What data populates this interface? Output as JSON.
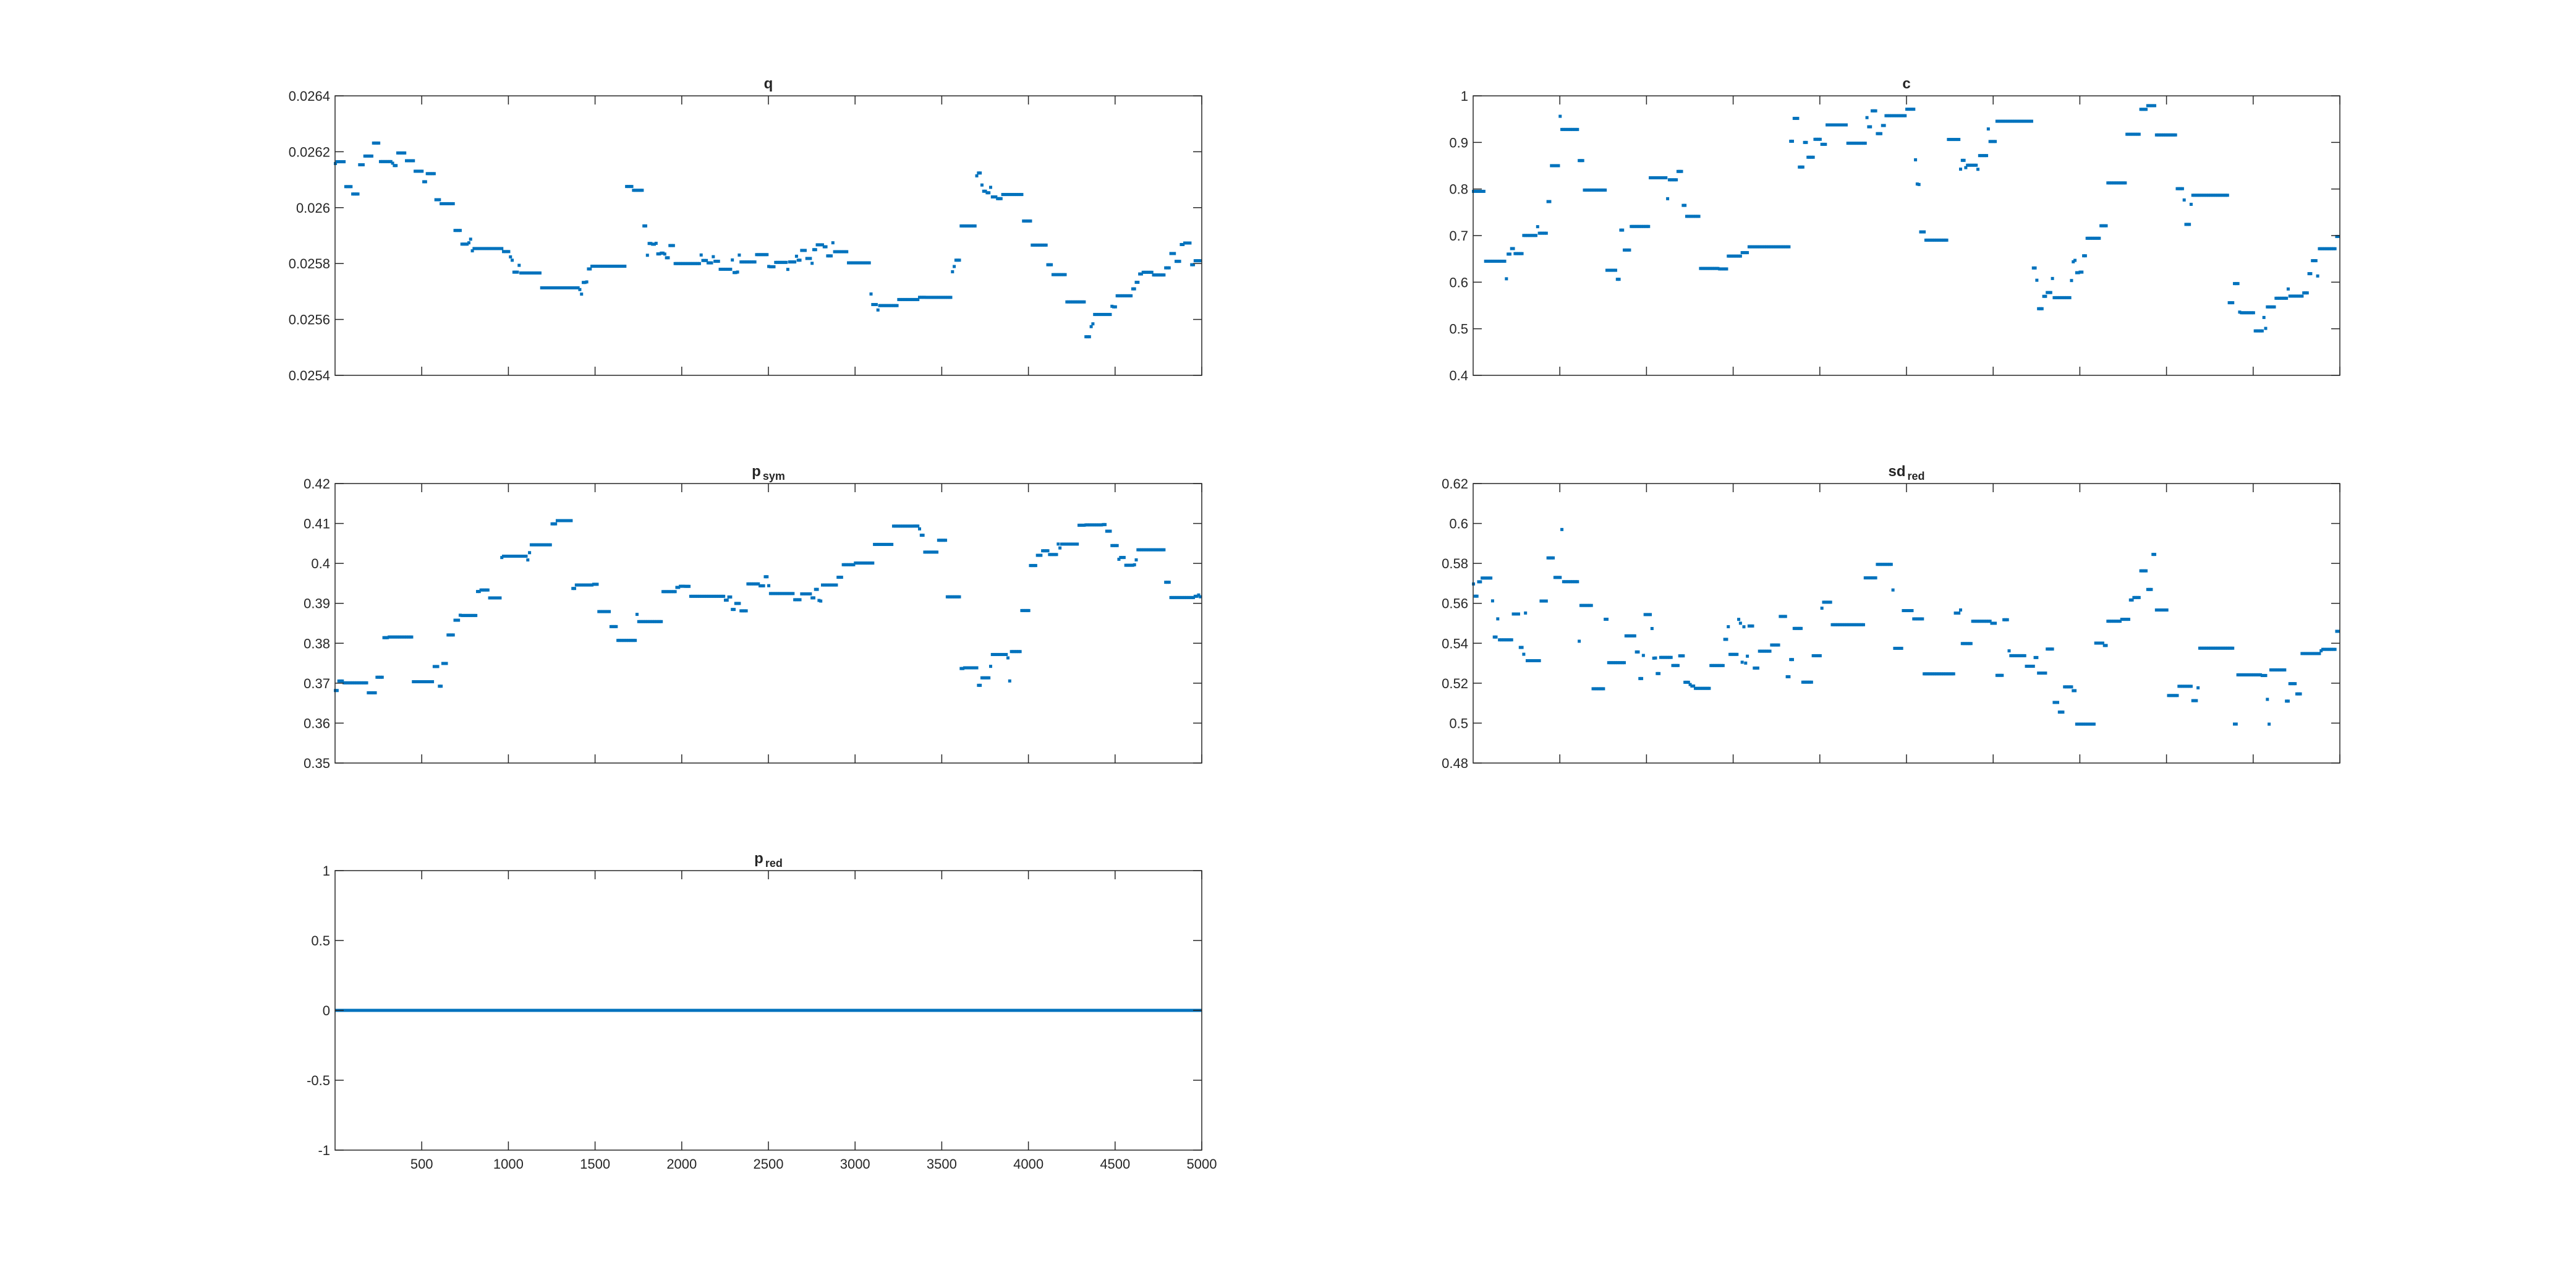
{
  "figure": {
    "background": "#ffffff",
    "axes_color": "#262626",
    "series_color": "#0072bd",
    "grid": false,
    "legend": false
  },
  "chart_data": [
    {
      "id": "q",
      "type": "scatter",
      "title": "q",
      "title_sub": "",
      "xlim": [
        0,
        5000
      ],
      "ylim": [
        0.0254,
        0.0264
      ],
      "yticks": [
        0.0254,
        0.0256,
        0.0258,
        0.026,
        0.0262,
        0.0264
      ],
      "ytick_labels": [
        "0.0254",
        "0.0256",
        "0.0258",
        "0.026",
        "0.0262",
        "0.0264"
      ],
      "xticks": [
        500,
        1000,
        1500,
        2000,
        2500,
        3000,
        3500,
        4000,
        4500,
        5000
      ],
      "xtick_labels": [],
      "series": [
        {
          "marker": "dot",
          "anchors": [
            [
              0,
              0.02616
            ],
            [
              100,
              0.02605
            ],
            [
              200,
              0.02624
            ],
            [
              300,
              0.0261
            ],
            [
              400,
              0.0262
            ],
            [
              500,
              0.02614
            ],
            [
              600,
              0.02602
            ],
            [
              700,
              0.0259
            ],
            [
              800,
              0.02586
            ],
            [
              900,
              0.02584
            ],
            [
              1000,
              0.0258
            ],
            [
              1100,
              0.02574
            ],
            [
              1200,
              0.0257
            ],
            [
              1300,
              0.02564
            ],
            [
              1400,
              0.0257
            ],
            [
              1500,
              0.02578
            ],
            [
              1600,
              0.02584
            ],
            [
              1650,
              0.02598
            ],
            [
              1700,
              0.02612
            ],
            [
              1750,
              0.026
            ],
            [
              1800,
              0.02585
            ],
            [
              1900,
              0.02584
            ],
            [
              2000,
              0.02582
            ],
            [
              2100,
              0.0258
            ],
            [
              2200,
              0.02579
            ],
            [
              2300,
              0.0258
            ],
            [
              2400,
              0.02582
            ],
            [
              2500,
              0.0258
            ],
            [
              2600,
              0.02581
            ],
            [
              2700,
              0.02583
            ],
            [
              2800,
              0.02584
            ],
            [
              2900,
              0.02585
            ],
            [
              2950,
              0.0258
            ],
            [
              3000,
              0.02568
            ],
            [
              3100,
              0.02566
            ],
            [
              3200,
              0.02564
            ],
            [
              3300,
              0.02566
            ],
            [
              3400,
              0.02565
            ],
            [
              3500,
              0.0257
            ],
            [
              3600,
              0.02585
            ],
            [
              3650,
              0.02612
            ],
            [
              3700,
              0.0261
            ],
            [
              3800,
              0.02605
            ],
            [
              3900,
              0.0261
            ],
            [
              4000,
              0.0259
            ],
            [
              4100,
              0.0258
            ],
            [
              4200,
              0.02566
            ],
            [
              4300,
              0.02554
            ],
            [
              4400,
              0.0256
            ],
            [
              4500,
              0.02566
            ],
            [
              4600,
              0.02572
            ],
            [
              4700,
              0.02575
            ],
            [
              4800,
              0.02582
            ],
            [
              4900,
              0.02585
            ],
            [
              5000,
              0.0258
            ]
          ],
          "noise": 3.5e-05
        }
      ]
    },
    {
      "id": "c",
      "type": "scatter",
      "title": "c",
      "title_sub": "",
      "xlim": [
        0,
        5000
      ],
      "ylim": [
        0.4,
        1
      ],
      "yticks": [
        0.4,
        0.5,
        0.6,
        0.7,
        0.8,
        0.9,
        1
      ],
      "ytick_labels": [
        "0.4",
        "0.5",
        "0.6",
        "0.7",
        "0.8",
        "0.9",
        "1"
      ],
      "xticks": [
        500,
        1000,
        1500,
        2000,
        2500,
        3000,
        3500,
        4000,
        4500,
        5000
      ],
      "xtick_labels": [],
      "series": [
        {
          "marker": "dot",
          "anchors": [
            [
              0,
              0.8
            ],
            [
              100,
              0.55
            ],
            [
              200,
              0.65
            ],
            [
              300,
              0.7
            ],
            [
              400,
              0.68
            ],
            [
              500,
              0.95
            ],
            [
              600,
              0.92
            ],
            [
              700,
              0.63
            ],
            [
              800,
              0.6
            ],
            [
              900,
              0.75
            ],
            [
              1000,
              0.85
            ],
            [
              1100,
              0.82
            ],
            [
              1200,
              0.8
            ],
            [
              1300,
              0.68
            ],
            [
              1400,
              0.6
            ],
            [
              1500,
              0.64
            ],
            [
              1600,
              0.66
            ],
            [
              1700,
              0.82
            ],
            [
              1800,
              0.94
            ],
            [
              1900,
              0.88
            ],
            [
              2000,
              0.9
            ],
            [
              2100,
              0.93
            ],
            [
              2200,
              0.95
            ],
            [
              2300,
              0.96
            ],
            [
              2400,
              0.92
            ],
            [
              2500,
              0.95
            ],
            [
              2600,
              0.7
            ],
            [
              2700,
              0.9
            ],
            [
              2800,
              0.82
            ],
            [
              2900,
              0.88
            ],
            [
              3000,
              0.92
            ],
            [
              3100,
              0.86
            ],
            [
              3200,
              0.6
            ],
            [
              3300,
              0.56
            ],
            [
              3400,
              0.58
            ],
            [
              3500,
              0.65
            ],
            [
              3600,
              0.72
            ],
            [
              3700,
              0.88
            ],
            [
              3800,
              0.92
            ],
            [
              3900,
              0.98
            ],
            [
              4000,
              0.78
            ],
            [
              4100,
              0.75
            ],
            [
              4200,
              0.78
            ],
            [
              4300,
              0.65
            ],
            [
              4400,
              0.56
            ],
            [
              4500,
              0.5
            ],
            [
              4600,
              0.52
            ],
            [
              4700,
              0.6
            ],
            [
              4800,
              0.62
            ],
            [
              4900,
              0.66
            ],
            [
              5000,
              0.68
            ]
          ],
          "noise": 0.045
        }
      ]
    },
    {
      "id": "p_sym",
      "type": "scatter",
      "title": "p",
      "title_sub": "sym",
      "xlim": [
        0,
        5000
      ],
      "ylim": [
        0.35,
        0.42
      ],
      "yticks": [
        0.35,
        0.36,
        0.37,
        0.38,
        0.39,
        0.4,
        0.41,
        0.42
      ],
      "ytick_labels": [
        "0.35",
        "0.36",
        "0.37",
        "0.38",
        "0.39",
        "0.4",
        "0.41",
        "0.42"
      ],
      "xticks": [
        500,
        1000,
        1500,
        2000,
        2500,
        3000,
        3500,
        4000,
        4500,
        5000
      ],
      "xtick_labels": [],
      "series": [
        {
          "marker": "dot",
          "anchors": [
            [
              0,
              0.368
            ],
            [
              100,
              0.376
            ],
            [
              200,
              0.366
            ],
            [
              300,
              0.383
            ],
            [
              400,
              0.378
            ],
            [
              500,
              0.37
            ],
            [
              600,
              0.372
            ],
            [
              700,
              0.39
            ],
            [
              800,
              0.391
            ],
            [
              900,
              0.395
            ],
            [
              1000,
              0.4
            ],
            [
              1100,
              0.404
            ],
            [
              1200,
              0.406
            ],
            [
              1300,
              0.408
            ],
            [
              1400,
              0.39
            ],
            [
              1500,
              0.393
            ],
            [
              1600,
              0.385
            ],
            [
              1700,
              0.38
            ],
            [
              1800,
              0.394
            ],
            [
              1900,
              0.393
            ],
            [
              2000,
              0.392
            ],
            [
              2100,
              0.39
            ],
            [
              2200,
              0.389
            ],
            [
              2300,
              0.39
            ],
            [
              2400,
              0.393
            ],
            [
              2500,
              0.396
            ],
            [
              2600,
              0.393
            ],
            [
              2700,
              0.393
            ],
            [
              2800,
              0.392
            ],
            [
              2900,
              0.394
            ],
            [
              3000,
              0.402
            ],
            [
              3100,
              0.404
            ],
            [
              3200,
              0.407
            ],
            [
              3300,
              0.406
            ],
            [
              3400,
              0.406
            ],
            [
              3500,
              0.404
            ],
            [
              3600,
              0.375
            ],
            [
              3700,
              0.372
            ],
            [
              3800,
              0.374
            ],
            [
              3900,
              0.374
            ],
            [
              4000,
              0.4
            ],
            [
              4100,
              0.4
            ],
            [
              4200,
              0.408
            ],
            [
              4300,
              0.412
            ],
            [
              4400,
              0.408
            ],
            [
              4500,
              0.403
            ],
            [
              4600,
              0.402
            ],
            [
              4700,
              0.401
            ],
            [
              4800,
              0.395
            ],
            [
              4900,
              0.39
            ],
            [
              5000,
              0.395
            ]
          ],
          "noise": 0.0035
        }
      ]
    },
    {
      "id": "sd_red",
      "type": "scatter",
      "title": "sd",
      "title_sub": "red",
      "xlim": [
        0,
        5000
      ],
      "ylim": [
        0.48,
        0.62
      ],
      "yticks": [
        0.48,
        0.5,
        0.52,
        0.54,
        0.56,
        0.58,
        0.6,
        0.62
      ],
      "ytick_labels": [
        "0.48",
        "0.5",
        "0.52",
        "0.54",
        "0.56",
        "0.58",
        "0.6",
        "0.62"
      ],
      "xticks": [
        500,
        1000,
        1500,
        2000,
        2500,
        3000,
        3500,
        4000,
        4500,
        5000
      ],
      "xtick_labels": [],
      "series": [
        {
          "marker": "dot",
          "anchors": [
            [
              0,
              0.57
            ],
            [
              100,
              0.555
            ],
            [
              200,
              0.55
            ],
            [
              300,
              0.545
            ],
            [
              400,
              0.565
            ],
            [
              500,
              0.59
            ],
            [
              600,
              0.56
            ],
            [
              700,
              0.53
            ],
            [
              800,
              0.54
            ],
            [
              900,
              0.525
            ],
            [
              1000,
              0.54
            ],
            [
              1100,
              0.53
            ],
            [
              1200,
              0.525
            ],
            [
              1300,
              0.535
            ],
            [
              1400,
              0.54
            ],
            [
              1500,
              0.55
            ],
            [
              1600,
              0.545
            ],
            [
              1700,
              0.535
            ],
            [
              1800,
              0.54
            ],
            [
              1900,
              0.53
            ],
            [
              2000,
              0.55
            ],
            [
              2100,
              0.56
            ],
            [
              2200,
              0.57
            ],
            [
              2300,
              0.575
            ],
            [
              2400,
              0.56
            ],
            [
              2500,
              0.535
            ],
            [
              2600,
              0.54
            ],
            [
              2700,
              0.545
            ],
            [
              2800,
              0.55
            ],
            [
              2900,
              0.545
            ],
            [
              3000,
              0.54
            ],
            [
              3100,
              0.535
            ],
            [
              3200,
              0.53
            ],
            [
              3300,
              0.525
            ],
            [
              3400,
              0.52
            ],
            [
              3500,
              0.515
            ],
            [
              3600,
              0.53
            ],
            [
              3700,
              0.55
            ],
            [
              3800,
              0.575
            ],
            [
              3900,
              0.58
            ],
            [
              4000,
              0.53
            ],
            [
              4100,
              0.52
            ],
            [
              4200,
              0.535
            ],
            [
              4300,
              0.52
            ],
            [
              4400,
              0.515
            ],
            [
              4500,
              0.505
            ],
            [
              4600,
              0.51
            ],
            [
              4700,
              0.52
            ],
            [
              4800,
              0.53
            ],
            [
              4900,
              0.545
            ],
            [
              5000,
              0.55
            ]
          ],
          "noise": 0.017
        }
      ]
    },
    {
      "id": "p_red",
      "type": "line",
      "title": "p",
      "title_sub": "red",
      "xlim": [
        0,
        5000
      ],
      "ylim": [
        -1,
        1
      ],
      "yticks": [
        -1,
        -0.5,
        0,
        0.5,
        1
      ],
      "ytick_labels": [
        "-1",
        "-0.5",
        "0",
        "0.5",
        "1"
      ],
      "xticks": [
        500,
        1000,
        1500,
        2000,
        2500,
        3000,
        3500,
        4000,
        4500,
        5000
      ],
      "xtick_labels": [
        "500",
        "1000",
        "1500",
        "2000",
        "2500",
        "3000",
        "3500",
        "4000",
        "4500",
        "5000"
      ],
      "series": [
        {
          "x": [
            0,
            5000
          ],
          "y": [
            0,
            0
          ]
        }
      ]
    }
  ]
}
